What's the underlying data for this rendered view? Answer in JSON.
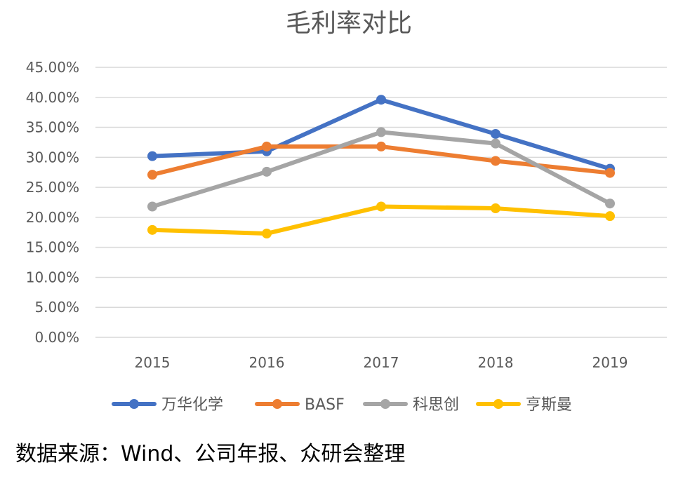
{
  "chart_data": {
    "type": "line",
    "title": "毛利率对比",
    "categories": [
      "2015",
      "2016",
      "2017",
      "2018",
      "2019"
    ],
    "ylim": [
      0,
      45
    ],
    "yticks": [
      "0.00%",
      "5.00%",
      "10.00%",
      "15.00%",
      "20.00%",
      "25.00%",
      "30.00%",
      "35.00%",
      "40.00%",
      "45.00%"
    ],
    "grid": true,
    "legend_position": "bottom",
    "series": [
      {
        "name": "万华化学",
        "color": "#4472C4",
        "values": [
          30.2,
          31.0,
          39.6,
          33.9,
          28.1
        ]
      },
      {
        "name": "BASF",
        "color": "#ED7D31",
        "values": [
          27.1,
          31.8,
          31.8,
          29.4,
          27.4
        ]
      },
      {
        "name": "科思创",
        "color": "#A5A5A5",
        "values": [
          21.8,
          27.6,
          34.2,
          32.3,
          22.3
        ]
      },
      {
        "name": "亨斯曼",
        "color": "#FFC000",
        "values": [
          17.9,
          17.3,
          21.8,
          21.5,
          20.2
        ]
      }
    ]
  },
  "source_note": "数据来源：Wind、公司年报、众研会整理"
}
